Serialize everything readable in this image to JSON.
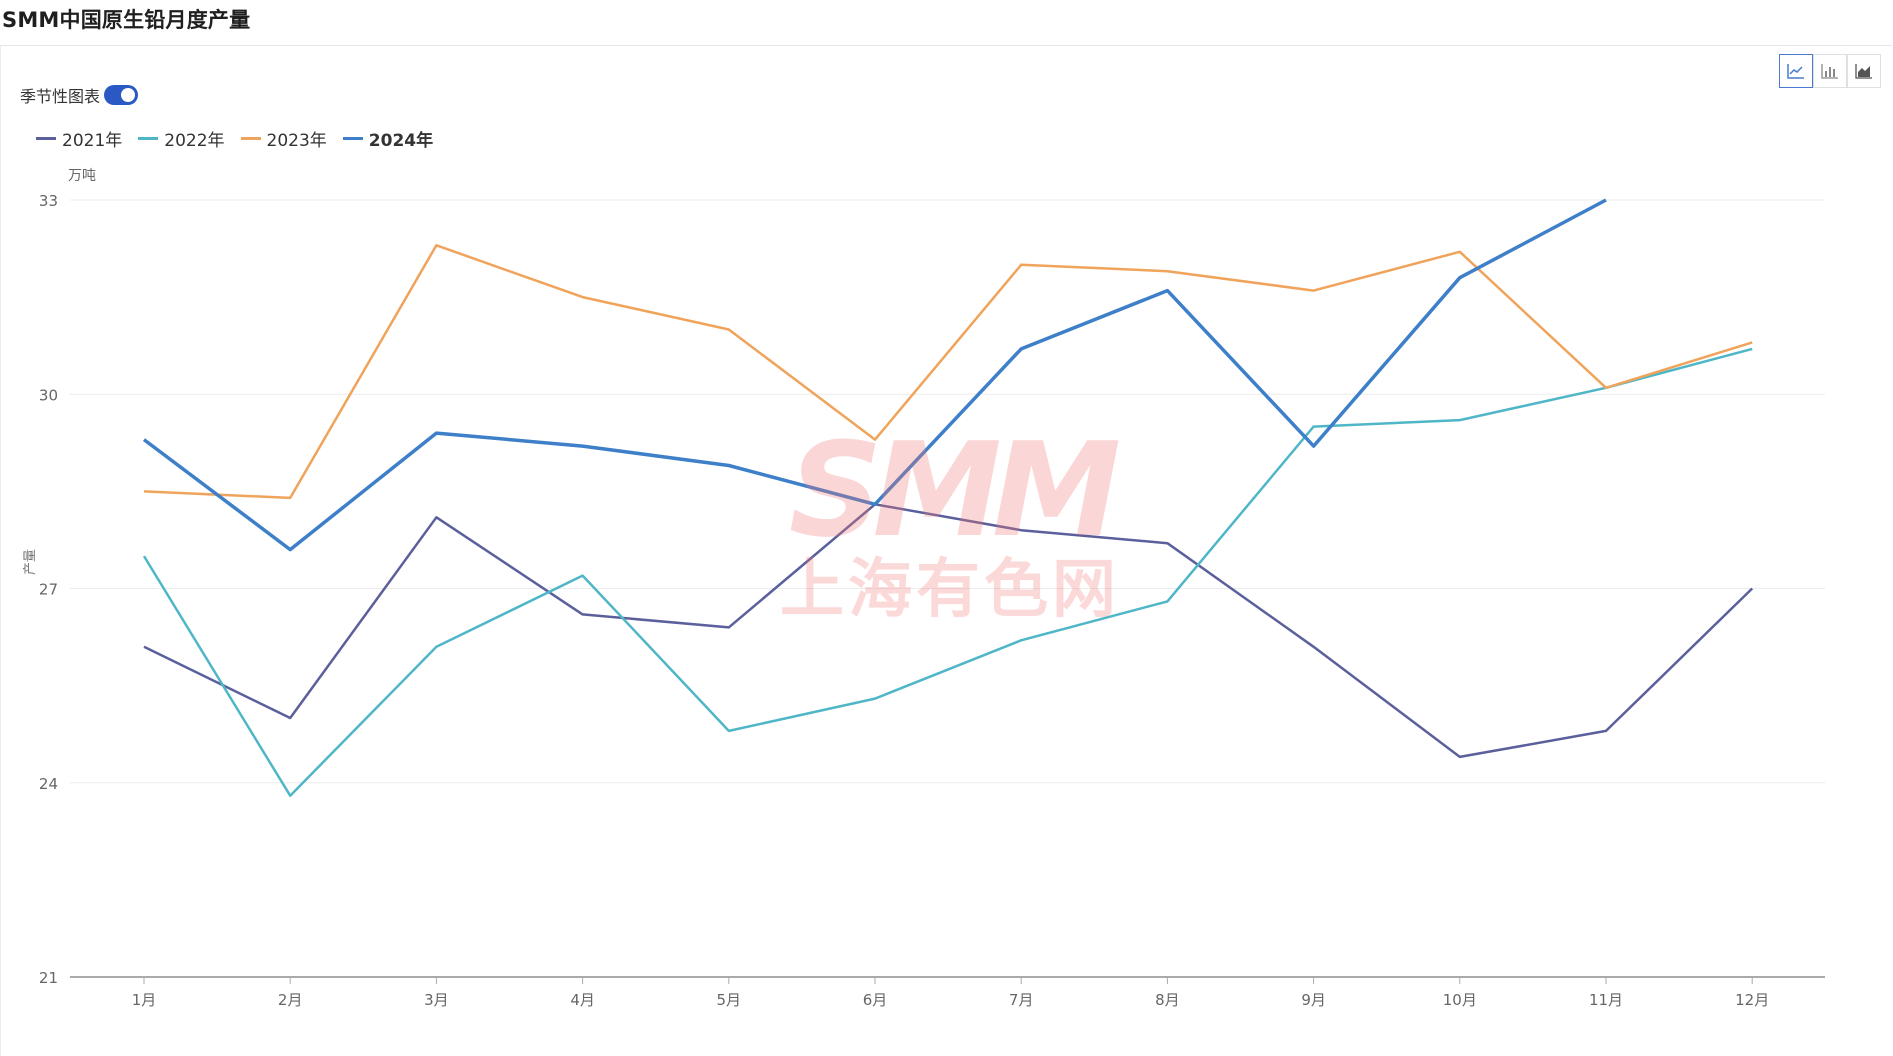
{
  "title": "SMM中国原生铅月度产量",
  "seasonal_toggle": {
    "label": "季节性图表",
    "on": true
  },
  "chart_type_buttons": [
    {
      "icon": "line-chart-icon",
      "active": true
    },
    {
      "icon": "bar-chart-icon",
      "active": false
    },
    {
      "icon": "area-chart-icon",
      "active": false
    }
  ],
  "watermark": {
    "logo": "SMM",
    "text": "上海有色网"
  },
  "chart_data": {
    "type": "line",
    "unit": "万吨",
    "ylabel": "产量",
    "ylim": [
      21,
      33
    ],
    "yticks": [
      21,
      24,
      27,
      30,
      33
    ],
    "categories": [
      "1月",
      "2月",
      "3月",
      "4月",
      "5月",
      "6月",
      "7月",
      "8月",
      "9月",
      "10月",
      "11月",
      "12月"
    ],
    "legend_position": "top-left",
    "grid": true,
    "series": [
      {
        "name": "2021年",
        "color": "#5b5f9b",
        "values": [
          26.1,
          25.0,
          28.1,
          26.6,
          26.4,
          28.3,
          27.9,
          27.7,
          26.1,
          24.4,
          24.8,
          27.0
        ]
      },
      {
        "name": "2022年",
        "color": "#4fb6c8",
        "values": [
          27.5,
          23.8,
          26.1,
          27.2,
          24.8,
          25.3,
          26.2,
          26.8,
          29.5,
          29.6,
          30.1,
          30.7
        ]
      },
      {
        "name": "2023年",
        "color": "#f0a35a",
        "values": [
          28.5,
          28.4,
          32.3,
          31.5,
          31.0,
          29.3,
          32.0,
          31.9,
          31.6,
          32.2,
          30.1,
          30.8
        ]
      },
      {
        "name": "2024年",
        "color": "#3e7fc9",
        "bold": true,
        "values": [
          29.3,
          27.6,
          29.4,
          29.2,
          28.9,
          28.3,
          30.7,
          31.6,
          29.2,
          31.8,
          33.0,
          null
        ]
      }
    ]
  }
}
